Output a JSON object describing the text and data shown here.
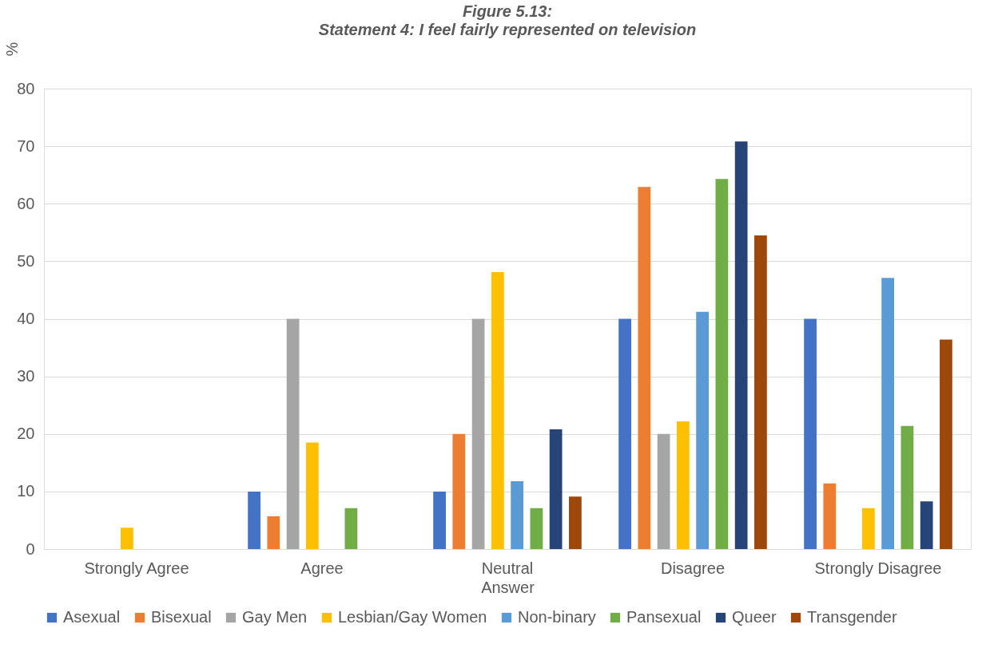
{
  "chart_data": {
    "type": "bar",
    "title": "Figure 5.13:",
    "subtitle": "Statement 4: I feel fairly represented on television",
    "xlabel": "Answer",
    "ylabel": "%",
    "categories": [
      "Strongly Agree",
      "Agree",
      "Neutral",
      "Disagree",
      "Strongly Disagree"
    ],
    "series": [
      {
        "name": "Asexual",
        "color": "#4472c4",
        "values": [
          0,
          10,
          10,
          40,
          40
        ]
      },
      {
        "name": "Bisexual",
        "color": "#ed7d31",
        "values": [
          0,
          5.7,
          20,
          62.9,
          11.4
        ]
      },
      {
        "name": "Gay Men",
        "color": "#a5a5a5",
        "values": [
          0,
          40,
          40,
          20,
          0
        ]
      },
      {
        "name": "Lesbian/Gay Women",
        "color": "#ffc000",
        "values": [
          3.7,
          18.5,
          48.1,
          22.2,
          7.1
        ]
      },
      {
        "name": "Non-binary",
        "color": "#5b9bd5",
        "values": [
          0,
          0,
          11.8,
          41.2,
          47.1
        ]
      },
      {
        "name": "Pansexual",
        "color": "#70ad47",
        "values": [
          0,
          7.1,
          7.1,
          64.3,
          21.4
        ]
      },
      {
        "name": "Queer",
        "color": "#264478",
        "values": [
          0,
          0,
          20.8,
          70.8,
          8.3
        ]
      },
      {
        "name": "Transgender",
        "color": "#9e480e",
        "values": [
          0,
          0,
          9.1,
          54.5,
          36.4
        ]
      }
    ],
    "ylim": [
      0,
      80
    ],
    "yticks": [
      0,
      10,
      20,
      30,
      40,
      50,
      60,
      70,
      80
    ],
    "grid": "y",
    "legend": "bottom"
  }
}
